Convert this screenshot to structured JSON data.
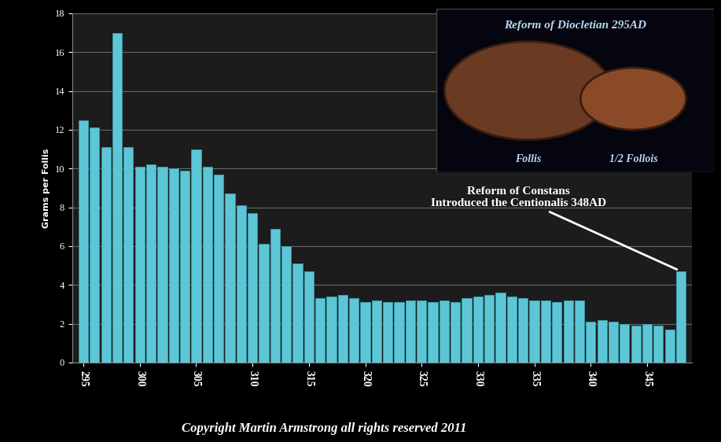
{
  "chart_data": {
    "type": "bar",
    "y_label": "Grams per Follis",
    "x": [
      295,
      296,
      297,
      298,
      299,
      300,
      301,
      302,
      303,
      304,
      305,
      306,
      307,
      308,
      309,
      310,
      311,
      312,
      313,
      314,
      315,
      316,
      317,
      318,
      319,
      320,
      321,
      322,
      323,
      324,
      325,
      326,
      327,
      328,
      329,
      330,
      331,
      332,
      333,
      334,
      335,
      336,
      337,
      338,
      339,
      340,
      341,
      342,
      343,
      344,
      345,
      346,
      347,
      348
    ],
    "values": [
      12.5,
      12.1,
      11.1,
      17.0,
      11.1,
      10.1,
      10.2,
      10.1,
      10.0,
      9.9,
      11.0,
      10.1,
      9.7,
      8.7,
      8.1,
      7.7,
      6.1,
      6.9,
      6.0,
      5.1,
      4.7,
      3.3,
      3.4,
      3.5,
      3.3,
      3.1,
      3.2,
      3.1,
      3.1,
      3.2,
      3.2,
      3.1,
      3.2,
      3.1,
      3.3,
      3.4,
      3.5,
      3.6,
      3.4,
      3.3,
      3.2,
      3.2,
      3.1,
      3.2,
      3.2,
      2.1,
      2.2,
      2.1,
      2.0,
      1.9,
      2.0,
      1.9,
      1.7,
      4.7
    ],
    "color": "#5cc6d6",
    "xlim": [
      294,
      349
    ],
    "xticks": [
      295,
      300,
      305,
      310,
      315,
      320,
      325,
      330,
      335,
      340,
      345
    ],
    "ylim": [
      0,
      18
    ],
    "yticks": [
      0,
      2,
      4,
      6,
      8,
      10,
      12,
      14,
      16,
      18
    ],
    "grid": true,
    "annotation": "Reform of Constans\nIntroduced the Centionalis 348AD",
    "inset_title": "Reform of Diocletian 295AD",
    "inset_labels": [
      "Follis",
      "1/2 Follois"
    ],
    "footer": "Copyright Martin Armstrong all rights reserved 2011"
  }
}
